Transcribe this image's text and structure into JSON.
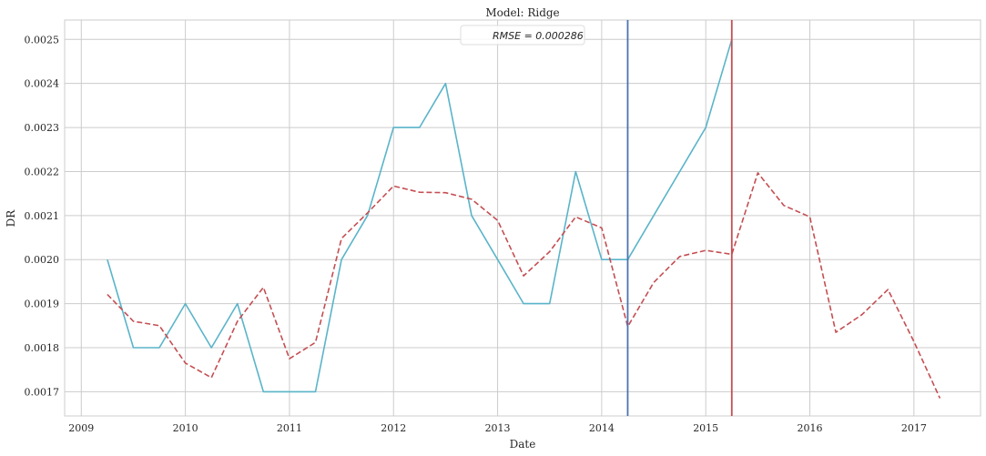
{
  "chart_data": {
    "type": "line",
    "title": "Model: Ridge",
    "xlabel": "Date",
    "ylabel": "DR",
    "xlim": [
      2008.84,
      2017.64
    ],
    "ylim": [
      0.001645,
      0.002544
    ],
    "x_ticks": [
      "2009",
      "2010",
      "2011",
      "2012",
      "2013",
      "2014",
      "2015",
      "2016",
      "2017"
    ],
    "y_ticks": [
      "0.0017",
      "0.0018",
      "0.0019",
      "0.0020",
      "0.0021",
      "0.0022",
      "0.0023",
      "0.0024",
      "0.0025"
    ],
    "grid": true,
    "legend": {
      "placement": "top-center",
      "text": "RMSE = 0.000286"
    },
    "series": [
      {
        "color": "#5ab4c9",
        "style": "solid",
        "x": [
          2009.25,
          2009.5,
          2009.75,
          2010.0,
          2010.25,
          2010.5,
          2010.75,
          2011.0,
          2011.25,
          2011.5,
          2011.75,
          2012.0,
          2012.25,
          2012.5,
          2012.75,
          2013.0,
          2013.25,
          2013.5,
          2013.75,
          2014.0,
          2014.25,
          2014.5,
          2014.75,
          2015.0,
          2015.25
        ],
        "values": [
          0.002,
          0.0018,
          0.0018,
          0.0019,
          0.0018,
          0.0019,
          0.0017,
          0.0017,
          0.0017,
          0.002,
          0.0021,
          0.0023,
          0.0023,
          0.0024,
          0.0021,
          0.002,
          0.0019,
          0.0019,
          0.0022,
          0.002,
          0.002,
          0.0021,
          0.0022,
          0.0023,
          0.0025
        ]
      },
      {
        "color": "#c44e52",
        "style": "dashed",
        "x": [
          2009.25,
          2009.5,
          2009.75,
          2010.0,
          2010.25,
          2010.5,
          2010.75,
          2011.0,
          2011.25,
          2011.5,
          2011.75,
          2012.0,
          2012.25,
          2012.5,
          2012.75,
          2013.0,
          2013.25,
          2013.5,
          2013.75,
          2014.0,
          2014.25,
          2014.5,
          2014.75,
          2015.0,
          2015.25,
          2015.5,
          2015.75,
          2016.0,
          2016.25,
          2016.5,
          2016.75,
          2017.0,
          2017.25
        ],
        "values": [
          0.001921,
          0.00186,
          0.00185,
          0.001765,
          0.001732,
          0.00186,
          0.001937,
          0.001775,
          0.001812,
          0.002048,
          0.002106,
          0.002167,
          0.002153,
          0.002152,
          0.002137,
          0.002089,
          0.001963,
          0.002018,
          0.002097,
          0.002072,
          0.001848,
          0.001948,
          0.002007,
          0.002021,
          0.002012,
          0.002197,
          0.002123,
          0.002097,
          0.001835,
          0.001875,
          0.001932,
          0.001814,
          0.001685
        ]
      }
    ],
    "vlines": [
      {
        "x": 2014.25,
        "color": "#4c72b0"
      },
      {
        "x": 2015.25,
        "color": "#c44e52"
      }
    ]
  }
}
